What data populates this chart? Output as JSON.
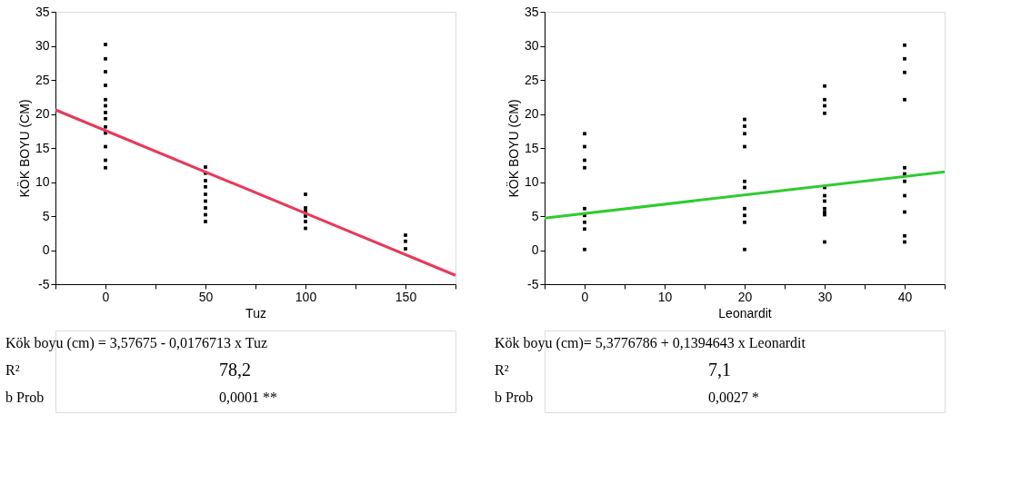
{
  "chart_data": [
    {
      "type": "scatter",
      "xlabel": "Tuz",
      "ylabel": "KÖK BOYU (CM)",
      "xlim": [
        -25,
        175
      ],
      "ylim": [
        -5,
        35
      ],
      "xticks": [
        {
          "value": -25,
          "label": null
        },
        0,
        {
          "value": 25,
          "label": null
        },
        50,
        {
          "value": 75,
          "label": null
        },
        100,
        {
          "value": 125,
          "label": null
        },
        150,
        {
          "value": 175,
          "label": null
        }
      ],
      "yticks": [
        -5,
        0,
        5,
        10,
        15,
        20,
        25,
        30,
        35
      ],
      "grid": false,
      "series": [
        {
          "type": "scatter",
          "marker": "square",
          "color": "#000000",
          "x": [
            0,
            0,
            0,
            0,
            0,
            0,
            0,
            0,
            0,
            0,
            0,
            0,
            0,
            50,
            50,
            50,
            50,
            50,
            50,
            50,
            50,
            50,
            100,
            100,
            100,
            100,
            100,
            100,
            150,
            150,
            150
          ],
          "values": [
            30.2,
            28.1,
            26.2,
            24.2,
            22.1,
            21.2,
            20.2,
            19.3,
            18.1,
            17.2,
            15.2,
            13.2,
            12.1,
            12.2,
            11.3,
            10.2,
            9.3,
            8.2,
            7.2,
            6.2,
            5.2,
            4.2,
            8.2,
            6.2,
            5.7,
            5.0,
            4.2,
            3.2,
            2.2,
            1.3,
            0.2
          ]
        },
        {
          "type": "line",
          "color": "#e8395a",
          "x": [
            -25,
            175
          ],
          "values": [
            20.6,
            -3.7
          ]
        }
      ],
      "annotations": [
        "Kök boyu (cm) = 3,57675 - 0,0176713 x Tuz",
        "R²",
        "78,2",
        "b Prob",
        "0,0001 **"
      ]
    },
    {
      "type": "scatter",
      "xlabel": "Leonardit",
      "ylabel": "KÖK BOYU (CM)",
      "xlim": [
        -5,
        45
      ],
      "ylim": [
        -5,
        35
      ],
      "xticks": [
        {
          "value": -5,
          "label": null
        },
        0,
        {
          "value": 5,
          "label": null
        },
        10,
        {
          "value": 15,
          "label": null
        },
        20,
        {
          "value": 25,
          "label": null
        },
        30,
        {
          "value": 35,
          "label": null
        },
        40,
        {
          "value": 45,
          "label": null
        }
      ],
      "yticks": [
        -5,
        0,
        5,
        10,
        15,
        20,
        25,
        30,
        35
      ],
      "grid": false,
      "series": [
        {
          "type": "scatter",
          "marker": "square",
          "color": "#000000",
          "x": [
            0,
            0,
            0,
            0,
            0,
            0,
            0,
            0,
            0,
            20,
            20,
            20,
            20,
            20,
            20,
            20,
            20,
            20,
            20,
            30,
            30,
            30,
            30,
            30,
            30,
            30,
            30,
            30,
            30,
            30,
            40,
            40,
            40,
            40,
            40,
            40,
            40,
            40,
            40,
            40,
            40
          ],
          "values": [
            17.1,
            15.2,
            13.2,
            12.1,
            6.1,
            5.1,
            4.1,
            3.1,
            0.1,
            19.2,
            18.2,
            17.1,
            15.2,
            10.1,
            9.2,
            6.1,
            5.1,
            4.1,
            0.1,
            24.1,
            22.1,
            21.2,
            20.1,
            9.2,
            8.0,
            7.2,
            6.1,
            5.6,
            5.2,
            1.2,
            30.1,
            28.1,
            26.1,
            22.1,
            12.1,
            11.2,
            10.1,
            8.0,
            5.6,
            2.1,
            1.2
          ]
        },
        {
          "type": "line",
          "color": "#2ecc2e",
          "x": [
            -5,
            45
          ],
          "values": [
            4.7,
            11.5
          ]
        }
      ],
      "annotations": [
        "Kök boyu (cm)= 5,3776786 + 0,1394643 x Leonardit",
        "R²",
        "7,1",
        "b Prob",
        "0,0027 *"
      ]
    }
  ]
}
